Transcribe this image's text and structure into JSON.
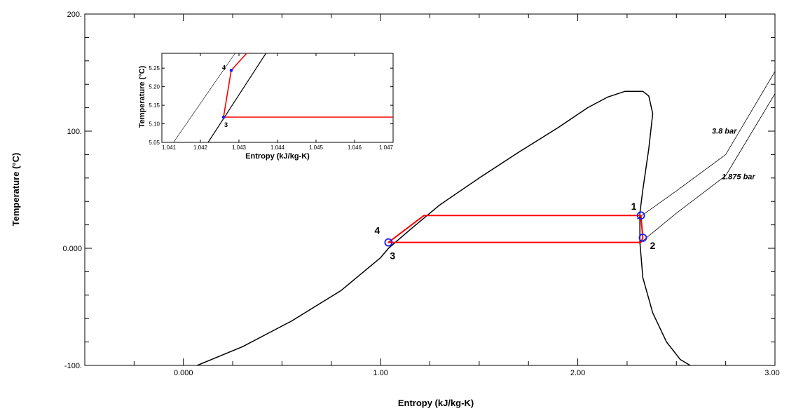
{
  "chart_data": [
    {
      "type": "line",
      "xlabel": "Entropy (kJ/kg-K)",
      "ylabel": "Temperature (°C)",
      "xlim": [
        -0.5,
        3.0
      ],
      "ylim": [
        -100,
        200
      ],
      "x_ticks": [
        {
          "value": 0.0,
          "label": "0.000"
        },
        {
          "value": 1.0,
          "label": "1.00"
        },
        {
          "value": 2.0,
          "label": "2.00"
        },
        {
          "value": 3.0,
          "label": "3.00"
        }
      ],
      "y_ticks": [
        {
          "value": -100,
          "label": "-100."
        },
        {
          "value": 0,
          "label": "0.000"
        },
        {
          "value": 100,
          "label": "100."
        },
        {
          "value": 200,
          "label": "200."
        }
      ],
      "x_minor_step": 0.25,
      "y_minor_step": 20,
      "grid": false,
      "series": [
        {
          "role": "saturation-dome",
          "color": "#000000",
          "points": [
            [
              0.07,
              -100
            ],
            [
              0.3,
              -84
            ],
            [
              0.55,
              -62
            ],
            [
              0.8,
              -36
            ],
            [
              1.0,
              -8
            ],
            [
              1.04,
              0
            ],
            [
              1.15,
              16
            ],
            [
              1.3,
              37
            ],
            [
              1.5,
              60
            ],
            [
              1.7,
              82
            ],
            [
              1.9,
              103
            ],
            [
              2.05,
              120
            ],
            [
              2.15,
              129
            ],
            [
              2.24,
              134
            ],
            [
              2.33,
              134
            ],
            [
              2.36,
              130
            ],
            [
              2.38,
              115
            ],
            [
              2.36,
              85
            ],
            [
              2.33,
              50
            ],
            [
              2.315,
              30
            ],
            [
              2.315,
              5
            ],
            [
              2.33,
              -25
            ],
            [
              2.38,
              -55
            ],
            [
              2.45,
              -80
            ],
            [
              2.52,
              -95
            ],
            [
              2.58,
              -101
            ]
          ]
        },
        {
          "role": "isobar",
          "label": "3.8 bar",
          "color": "#000000",
          "points": [
            [
              2.3,
              25
            ],
            [
              2.5,
              49
            ],
            [
              2.75,
              80
            ],
            [
              3.0,
              151
            ]
          ]
        },
        {
          "role": "isobar",
          "label": "1.875 bar",
          "color": "#000000",
          "points": [
            [
              2.32,
              5
            ],
            [
              2.5,
              30
            ],
            [
              2.75,
              62
            ],
            [
              3.0,
              132
            ]
          ]
        },
        {
          "role": "cycle",
          "color": "#ff0000",
          "points": [
            [
              2.32,
              28
            ],
            [
              2.33,
              9
            ],
            [
              2.32,
              5
            ],
            [
              1.04,
              5
            ],
            [
              1.22,
              28
            ],
            [
              2.32,
              28
            ]
          ]
        }
      ],
      "states": [
        {
          "label": "1",
          "s": 2.32,
          "t": 28
        },
        {
          "label": "2",
          "s": 2.33,
          "t": 9
        },
        {
          "label": "3",
          "s": 1.04,
          "t": 5
        },
        {
          "label": "4",
          "s": 1.04,
          "t": 5
        }
      ],
      "annotations": [
        {
          "text": "3.8 bar",
          "s": 2.68,
          "t": 98
        },
        {
          "text": "1.875 bar",
          "s": 2.73,
          "t": 59
        }
      ]
    },
    {
      "type": "line",
      "role": "inset",
      "xlabel": "Entropy (kJ/kg-K)",
      "ylabel": "Temperature (°C)",
      "xlim": [
        1.041,
        1.047
      ],
      "ylim": [
        5.05,
        5.29
      ],
      "x_ticks": [
        {
          "value": 1.041,
          "label": "1.041"
        },
        {
          "value": 1.042,
          "label": "1.042"
        },
        {
          "value": 1.043,
          "label": "1.043"
        },
        {
          "value": 1.044,
          "label": "1.044"
        },
        {
          "value": 1.045,
          "label": "1.045"
        },
        {
          "value": 1.046,
          "label": "1.046"
        },
        {
          "value": 1.047,
          "label": "1.047"
        }
      ],
      "y_ticks": [
        {
          "value": 5.05,
          "label": "5.05"
        },
        {
          "value": 5.1,
          "label": "5.10"
        },
        {
          "value": 5.15,
          "label": "5.15"
        },
        {
          "value": 5.2,
          "label": "5.20"
        },
        {
          "value": 5.25,
          "label": "5.25"
        }
      ],
      "series": [
        {
          "role": "saturated-liquid",
          "color": "#000000",
          "points": [
            [
              1.0422,
              5.05
            ],
            [
              1.0437,
              5.29
            ]
          ]
        },
        {
          "role": "isobar",
          "color": "#000000",
          "points": [
            [
              1.0413,
              5.05
            ],
            [
              1.0429,
              5.29
            ]
          ]
        },
        {
          "role": "cycle",
          "color": "#ff0000",
          "points": [
            [
              1.047,
              5.118
            ],
            [
              1.0426,
              5.118
            ],
            [
              1.0428,
              5.244
            ],
            [
              1.0432,
              5.29
            ]
          ]
        }
      ],
      "states": [
        {
          "label": "3",
          "s": 1.0426,
          "t": 5.118
        },
        {
          "label": "4",
          "s": 1.0428,
          "t": 5.244
        }
      ]
    }
  ]
}
